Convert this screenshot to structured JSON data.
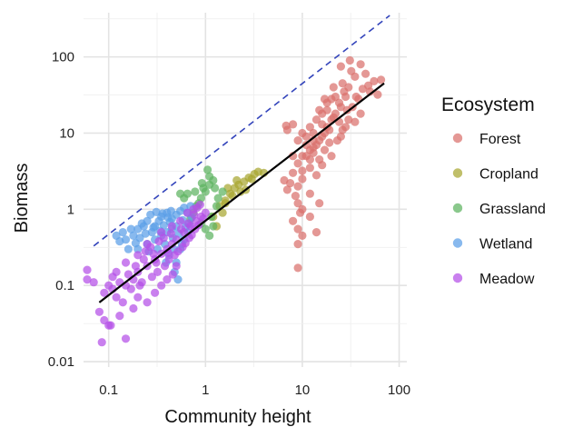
{
  "chart_data": {
    "type": "scatter",
    "title": "",
    "xlabel": "Community height",
    "ylabel": "Biomass",
    "x_scale": "log10",
    "y_scale": "log10",
    "xlim": [
      0.055,
      120
    ],
    "ylim": [
      0.0085,
      380
    ],
    "x_ticks": [
      0.1,
      1,
      10,
      100
    ],
    "x_tick_labels": [
      "0.1",
      "1",
      "10",
      "100"
    ],
    "y_ticks": [
      0.01,
      0.1,
      1,
      10,
      100
    ],
    "y_tick_labels": [
      "0.01",
      "0.1",
      "1",
      "10",
      "100"
    ],
    "grid": true,
    "legend": {
      "title": "Ecosystem",
      "placement": "right",
      "entries": [
        "Forest",
        "Cropland",
        "Grassland",
        "Wetland",
        "Meadow"
      ]
    },
    "series": [
      {
        "name": "Forest",
        "color": "#D9706C",
        "points": [
          [
            14,
            7
          ],
          [
            16,
            9
          ],
          [
            12,
            6
          ],
          [
            18,
            12
          ],
          [
            20,
            15
          ],
          [
            11,
            5
          ],
          [
            15,
            8
          ],
          [
            17,
            10
          ],
          [
            13,
            6.5
          ],
          [
            22,
            18
          ],
          [
            25,
            22
          ],
          [
            19,
            11
          ],
          [
            9,
            4
          ],
          [
            10,
            5
          ],
          [
            16,
            13
          ],
          [
            21,
            16
          ],
          [
            28,
            30
          ],
          [
            30,
            40
          ],
          [
            35,
            55
          ],
          [
            24,
            25
          ],
          [
            12,
            3.5
          ],
          [
            15,
            4.5
          ],
          [
            13,
            8
          ],
          [
            11,
            7
          ],
          [
            18,
            20
          ],
          [
            20,
            28
          ],
          [
            26,
            45
          ],
          [
            32,
            65
          ],
          [
            40,
            80
          ],
          [
            45,
            60
          ],
          [
            55,
            48
          ],
          [
            65,
            50
          ],
          [
            50,
            35
          ],
          [
            38,
            28
          ],
          [
            14,
            2.8
          ],
          [
            10,
            2.5
          ],
          [
            9,
            2
          ],
          [
            8.5,
            1.5
          ],
          [
            9,
            1.2
          ],
          [
            10,
            1
          ],
          [
            9.5,
            0.9
          ],
          [
            8,
            0.7
          ],
          [
            9,
            0.55
          ],
          [
            10,
            0.45
          ],
          [
            9,
            0.35
          ],
          [
            14,
            0.5
          ],
          [
            15,
            1.2
          ],
          [
            12,
            1.6
          ],
          [
            8,
            3
          ],
          [
            7.5,
            2.2
          ],
          [
            7,
            1.8
          ],
          [
            6.5,
            2.4
          ],
          [
            7,
            11
          ],
          [
            6.8,
            12.5
          ],
          [
            8,
            13
          ],
          [
            16,
            18
          ],
          [
            22,
            30
          ],
          [
            27,
            35
          ],
          [
            33,
            22
          ],
          [
            30,
            15
          ],
          [
            28,
            12
          ],
          [
            25,
            9
          ],
          [
            35,
            14
          ],
          [
            40,
            18
          ],
          [
            13,
            5.5
          ],
          [
            17,
            6
          ],
          [
            19,
            7.5
          ],
          [
            11,
            9
          ],
          [
            12,
            12
          ],
          [
            9,
            8
          ],
          [
            10,
            10
          ],
          [
            20,
            5
          ],
          [
            23,
            8
          ],
          [
            26,
            11
          ],
          [
            14,
            15
          ],
          [
            18,
            25
          ],
          [
            15,
            20
          ],
          [
            42,
            38
          ],
          [
            48,
            42
          ],
          [
            60,
            32
          ],
          [
            21,
            40
          ],
          [
            17,
            28
          ],
          [
            12,
            4.5
          ],
          [
            10,
            3.2
          ],
          [
            16,
            3.8
          ],
          [
            8,
            5
          ],
          [
            13,
            10
          ],
          [
            24,
            14
          ],
          [
            29,
            20
          ],
          [
            36,
            30
          ],
          [
            9,
            0.17
          ],
          [
            12,
            0.8
          ],
          [
            31,
            90
          ],
          [
            25,
            75
          ]
        ]
      },
      {
        "name": "Cropland",
        "color": "#A8A630",
        "points": [
          [
            1.6,
            1.3
          ],
          [
            1.8,
            1.6
          ],
          [
            2,
            1.9
          ],
          [
            2.2,
            2.1
          ],
          [
            2.5,
            2.3
          ],
          [
            2.8,
            2.6
          ],
          [
            3.2,
            2.9
          ],
          [
            3.5,
            3.1
          ],
          [
            3,
            2.5
          ],
          [
            2.3,
            1.7
          ],
          [
            1.9,
            1.5
          ],
          [
            1.4,
            1.1
          ],
          [
            1.2,
            0.8
          ],
          [
            1.5,
            0.9
          ],
          [
            2.6,
            1.8
          ],
          [
            4,
            3
          ],
          [
            2.1,
            2.4
          ],
          [
            1.7,
            1.9
          ],
          [
            1.3,
            0.6
          ],
          [
            1.6,
            1.2
          ]
        ]
      },
      {
        "name": "Grassland",
        "color": "#5DB35F",
        "points": [
          [
            0.8,
            1.1
          ],
          [
            0.9,
            1.4
          ],
          [
            1,
            1.7
          ],
          [
            1.1,
            2.1
          ],
          [
            1.2,
            2.4
          ],
          [
            1.05,
            3.3
          ],
          [
            1.1,
            2.7
          ],
          [
            0.95,
            1.9
          ],
          [
            0.85,
            1.2
          ],
          [
            0.75,
            0.9
          ],
          [
            0.7,
            0.75
          ],
          [
            0.9,
            0.65
          ],
          [
            1,
            0.55
          ],
          [
            1.1,
            0.45
          ],
          [
            1.2,
            0.6
          ],
          [
            1.35,
            1.4
          ],
          [
            1.5,
            1.7
          ],
          [
            0.6,
            1.4
          ],
          [
            0.65,
            1.6
          ],
          [
            1.3,
            1.1
          ],
          [
            1.15,
            0.8
          ],
          [
            0.92,
            2.2
          ],
          [
            0.78,
            1.7
          ],
          [
            1.25,
            1.9
          ],
          [
            0.55,
            1.6
          ]
        ]
      },
      {
        "name": "Wetland",
        "color": "#5A9EE8",
        "points": [
          [
            0.15,
            0.4
          ],
          [
            0.2,
            0.55
          ],
          [
            0.25,
            0.7
          ],
          [
            0.3,
            0.6
          ],
          [
            0.35,
            0.8
          ],
          [
            0.4,
            0.9
          ],
          [
            0.45,
            0.75
          ],
          [
            0.5,
            0.85
          ],
          [
            0.55,
            0.95
          ],
          [
            0.6,
            1.05
          ],
          [
            0.65,
            0.9
          ],
          [
            0.7,
            1.1
          ],
          [
            0.3,
            0.4
          ],
          [
            0.35,
            0.45
          ],
          [
            0.4,
            0.5
          ],
          [
            0.45,
            0.55
          ],
          [
            0.5,
            0.6
          ],
          [
            0.25,
            0.35
          ],
          [
            0.2,
            0.3
          ],
          [
            0.18,
            0.45
          ],
          [
            0.22,
            0.65
          ],
          [
            0.28,
            0.5
          ],
          [
            0.32,
            0.3
          ],
          [
            0.38,
            0.35
          ],
          [
            0.42,
            0.25
          ],
          [
            0.5,
            0.2
          ],
          [
            0.55,
            0.3
          ],
          [
            0.6,
            0.4
          ],
          [
            0.48,
            0.15
          ],
          [
            0.52,
            0.12
          ],
          [
            0.14,
            0.5
          ],
          [
            0.16,
            0.3
          ],
          [
            0.12,
            0.45
          ],
          [
            0.13,
            0.38
          ],
          [
            0.33,
            0.7
          ],
          [
            0.37,
            0.62
          ],
          [
            0.27,
            0.85
          ],
          [
            0.24,
            0.48
          ],
          [
            0.43,
            0.68
          ],
          [
            0.58,
            0.72
          ],
          [
            0.62,
            0.58
          ],
          [
            0.68,
            0.64
          ],
          [
            0.72,
            0.78
          ],
          [
            0.46,
            0.42
          ],
          [
            0.34,
            0.52
          ],
          [
            0.29,
            0.58
          ],
          [
            0.21,
            0.42
          ],
          [
            0.19,
            0.36
          ],
          [
            0.41,
            0.78
          ],
          [
            0.53,
            0.48
          ],
          [
            0.36,
            0.88
          ],
          [
            0.26,
            0.28
          ],
          [
            0.31,
            0.92
          ],
          [
            0.44,
            0.95
          ],
          [
            0.57,
            0.35
          ],
          [
            0.39,
            0.2
          ],
          [
            0.47,
            0.3
          ],
          [
            0.17,
            0.55
          ],
          [
            0.23,
            0.6
          ],
          [
            0.66,
            0.5
          ]
        ]
      },
      {
        "name": "Meadow",
        "color": "#B44FE8",
        "points": [
          [
            0.06,
            0.16
          ],
          [
            0.06,
            0.12
          ],
          [
            0.08,
            0.045
          ],
          [
            0.09,
            0.035
          ],
          [
            0.1,
            0.03
          ],
          [
            0.085,
            0.018
          ],
          [
            0.15,
            0.02
          ],
          [
            0.12,
            0.07
          ],
          [
            0.15,
            0.1
          ],
          [
            0.18,
            0.12
          ],
          [
            0.2,
            0.15
          ],
          [
            0.25,
            0.18
          ],
          [
            0.3,
            0.22
          ],
          [
            0.35,
            0.26
          ],
          [
            0.4,
            0.3
          ],
          [
            0.45,
            0.35
          ],
          [
            0.5,
            0.4
          ],
          [
            0.6,
            0.5
          ],
          [
            0.7,
            0.6
          ],
          [
            0.8,
            0.7
          ],
          [
            0.9,
            0.8
          ],
          [
            0.65,
            0.9
          ],
          [
            0.75,
            1.0
          ],
          [
            0.55,
            0.7
          ],
          [
            0.45,
            0.6
          ],
          [
            0.35,
            0.5
          ],
          [
            0.25,
            0.35
          ],
          [
            0.2,
            0.25
          ],
          [
            0.15,
            0.2
          ],
          [
            0.12,
            0.15
          ],
          [
            0.1,
            0.1
          ],
          [
            0.09,
            0.08
          ],
          [
            0.11,
            0.13
          ],
          [
            0.13,
            0.11
          ],
          [
            0.17,
            0.09
          ],
          [
            0.22,
            0.11
          ],
          [
            0.28,
            0.13
          ],
          [
            0.32,
            0.15
          ],
          [
            0.38,
            0.18
          ],
          [
            0.42,
            0.22
          ],
          [
            0.48,
            0.25
          ],
          [
            0.52,
            0.28
          ],
          [
            0.58,
            0.32
          ],
          [
            0.62,
            0.36
          ],
          [
            0.68,
            0.42
          ],
          [
            0.72,
            0.46
          ],
          [
            0.78,
            0.55
          ],
          [
            0.85,
            0.62
          ],
          [
            0.95,
            0.75
          ],
          [
            1.0,
            0.9
          ],
          [
            0.3,
            0.08
          ],
          [
            0.25,
            0.06
          ],
          [
            0.2,
            0.07
          ],
          [
            0.18,
            0.05
          ],
          [
            0.4,
            0.12
          ],
          [
            0.35,
            0.1
          ],
          [
            0.14,
            0.06
          ],
          [
            0.16,
            0.14
          ],
          [
            0.24,
            0.28
          ],
          [
            0.27,
            0.32
          ],
          [
            0.33,
            0.38
          ],
          [
            0.37,
            0.42
          ],
          [
            0.44,
            0.48
          ],
          [
            0.56,
            0.55
          ],
          [
            0.66,
            0.65
          ],
          [
            0.76,
            0.85
          ],
          [
            0.82,
            1.05
          ],
          [
            0.88,
            1.15
          ],
          [
            0.5,
            0.18
          ],
          [
            0.46,
            0.14
          ],
          [
            0.19,
            0.18
          ],
          [
            0.23,
            0.22
          ],
          [
            0.29,
            0.26
          ],
          [
            0.11,
            0.09
          ],
          [
            0.07,
            0.11
          ],
          [
            0.105,
            0.03
          ],
          [
            0.13,
            0.04
          ],
          [
            0.21,
            0.1
          ],
          [
            0.31,
            0.2
          ],
          [
            0.41,
            0.27
          ]
        ]
      }
    ],
    "trend_line": {
      "label": "",
      "color": "#000000",
      "from": [
        0.08,
        0.06
      ],
      "to": [
        70,
        45
      ]
    },
    "reference_line": {
      "label": "",
      "color": "#3344BB",
      "style": "dashed",
      "from": [
        0.07,
        0.33
      ],
      "to": [
        80,
        350
      ]
    }
  }
}
